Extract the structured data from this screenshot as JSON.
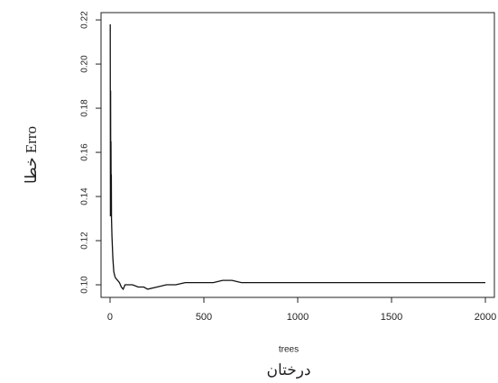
{
  "chart_data": {
    "type": "line",
    "x_label": "trees",
    "x_label_2": "درختان",
    "y_label": "خطا Erro",
    "x": [
      1,
      2,
      3,
      4,
      5,
      6,
      7,
      8,
      10,
      12,
      15,
      20,
      25,
      30,
      40,
      50,
      60,
      70,
      80,
      100,
      120,
      150,
      180,
      200,
      250,
      300,
      350,
      400,
      450,
      500,
      550,
      600,
      650,
      700,
      800,
      900,
      1000,
      1200,
      1400,
      1600,
      1800,
      2000
    ],
    "series": [
      {
        "name": "Error",
        "color": "#111111",
        "values": [
          0.218,
          0.131,
          0.188,
          0.135,
          0.165,
          0.14,
          0.15,
          0.13,
          0.122,
          0.118,
          0.112,
          0.106,
          0.104,
          0.103,
          0.102,
          0.101,
          0.099,
          0.098,
          0.1,
          0.1,
          0.1,
          0.099,
          0.099,
          0.098,
          0.099,
          0.1,
          0.1,
          0.101,
          0.101,
          0.101,
          0.101,
          0.102,
          0.102,
          0.101,
          0.101,
          0.101,
          0.101,
          0.101,
          0.101,
          0.101,
          0.101,
          0.101
        ]
      }
    ],
    "xlim": [
      -48,
      2048
    ],
    "xticks": [
      0,
      500,
      1000,
      1500,
      2000
    ],
    "ylim": [
      0.0943,
      0.2233
    ],
    "yticks": [
      {
        "value": 0.1,
        "label": "0.10"
      },
      0.12,
      0.14,
      0.16,
      0.18,
      {
        "value": 0.2,
        "label": "0.20"
      },
      0.22
    ]
  }
}
